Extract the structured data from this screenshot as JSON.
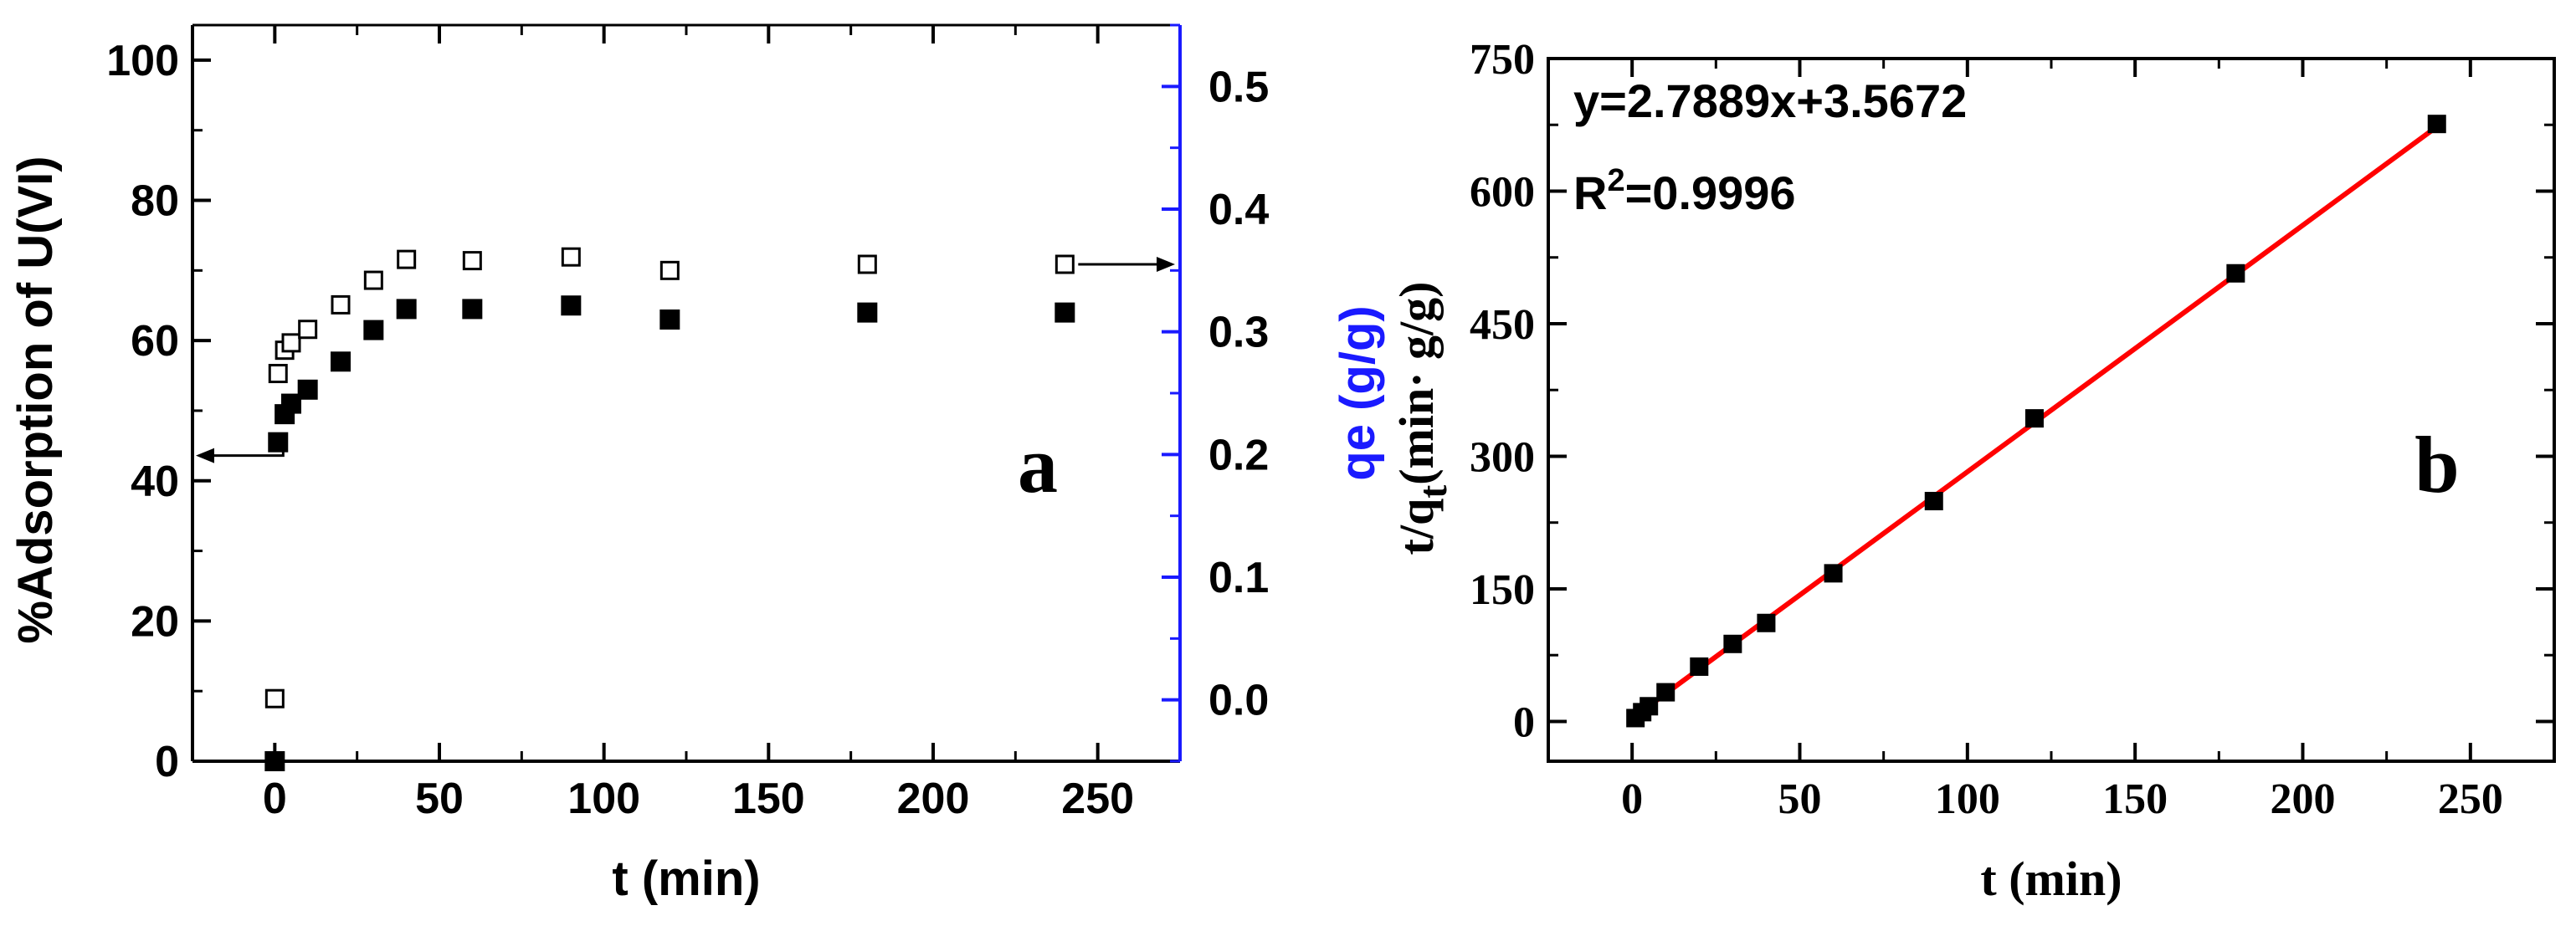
{
  "chart_data": [
    {
      "type": "scatter",
      "panel_label": "a",
      "xlabel": "t (min)",
      "ylabel": "%Adsorption of U(VI)",
      "y2label": "qe (g/g)",
      "xlim": [
        -25,
        275
      ],
      "ylim": [
        0,
        105
      ],
      "y2lim": [
        -0.05,
        0.55
      ],
      "x_ticks": [
        0,
        50,
        100,
        150,
        200,
        250
      ],
      "y_ticks": [
        0,
        20,
        40,
        60,
        80,
        100
      ],
      "y2_ticks": [
        0.0,
        0.1,
        0.2,
        0.3,
        0.4,
        0.5
      ],
      "x_tick_labels": [
        "0",
        "50",
        "100",
        "150",
        "200",
        "250"
      ],
      "y_tick_labels": [
        "0",
        "20",
        "40",
        "60",
        "80",
        "100"
      ],
      "y2_tick_labels": [
        "0.0",
        "0.1",
        "0.2",
        "0.3",
        "0.4",
        "0.5"
      ],
      "y2_color": "#1a1aff",
      "series": [
        {
          "axis": "left",
          "marker": "filled-square",
          "x": [
            0,
            1,
            3,
            5,
            10,
            20,
            30,
            40,
            60,
            90,
            120,
            180,
            240
          ],
          "y": [
            0,
            45.5,
            49.5,
            51,
            53,
            57,
            61.5,
            64.5,
            64.5,
            65,
            63,
            64,
            64
          ]
        },
        {
          "axis": "right",
          "marker": "open-square",
          "x": [
            0,
            1,
            3,
            5,
            10,
            20,
            30,
            40,
            60,
            90,
            120,
            180,
            240
          ],
          "y": [
            0.001,
            0.266,
            0.285,
            0.291,
            0.302,
            0.322,
            0.342,
            0.359,
            0.358,
            0.361,
            0.35,
            0.355,
            0.355
          ]
        }
      ],
      "arrows": [
        {
          "points_to": "left axis",
          "from_series": 0
        },
        {
          "points_to": "right axis",
          "from_series": 1
        }
      ]
    },
    {
      "type": "scatter",
      "panel_label": "b",
      "xlabel": "t (min)",
      "ylabel_main": "t/q",
      "ylabel_sub": "t",
      "ylabel_rest": "(min· g/g)",
      "xlim": [
        -25,
        275
      ],
      "ylim": [
        -45,
        750
      ],
      "x_ticks": [
        0,
        50,
        100,
        150,
        200,
        250
      ],
      "y_ticks": [
        0,
        150,
        300,
        450,
        600,
        750
      ],
      "x_tick_labels": [
        "0",
        "50",
        "100",
        "150",
        "200",
        "250"
      ],
      "y_tick_labels": [
        "0",
        "150",
        "300",
        "450",
        "600",
        "750"
      ],
      "equation": "y=2.7889x+3.5672",
      "r2_prefix": "R",
      "r2_sup": "2",
      "r2_suffix": "=0.9996",
      "fit": {
        "slope": 2.7889,
        "intercept": 3.5672,
        "x_range": [
          0,
          240
        ],
        "color": "#ff0000"
      },
      "series": [
        {
          "marker": "filled-square",
          "x": [
            1,
            3,
            5,
            10,
            20,
            30,
            40,
            60,
            90,
            120,
            180,
            240
          ],
          "y": [
            3.8,
            10.5,
            17.2,
            33,
            62,
            87.7,
            111.4,
            167.6,
            249.3,
            342.9,
            507,
            676
          ]
        }
      ]
    }
  ]
}
